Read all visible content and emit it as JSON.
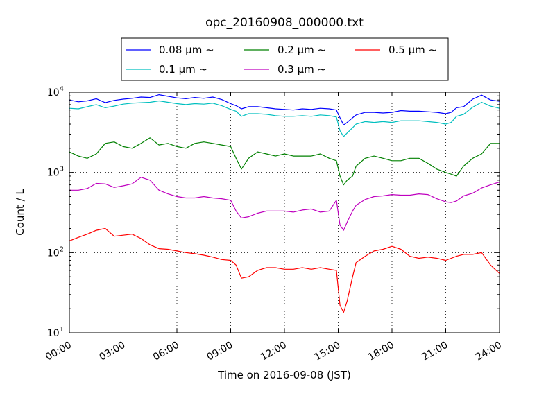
{
  "chart_data": {
    "type": "line",
    "title": "opc_20160908_000000.txt",
    "xlabel": "Time on 2016-09-08 (JST)",
    "ylabel": "Count / L",
    "x_unit": "hours",
    "xlim": [
      0,
      24
    ],
    "ylim": [
      10,
      10000
    ],
    "yscale": "log",
    "grid": true,
    "legend_position": "top-center",
    "x_ticks": [
      0,
      3,
      6,
      9,
      12,
      15,
      18,
      21,
      24
    ],
    "x_tick_labels": [
      "00:00",
      "03:00",
      "06:00",
      "09:00",
      "12:00",
      "15:00",
      "18:00",
      "21:00",
      "24:00"
    ],
    "y_ticks": [
      10,
      100,
      1000,
      10000
    ],
    "y_tick_labels": [
      {
        "base": "10",
        "exp": "1"
      },
      {
        "base": "10",
        "exp": "2"
      },
      {
        "base": "10",
        "exp": "3"
      },
      {
        "base": "10",
        "exp": "4"
      }
    ],
    "x": [
      0,
      0.5,
      1,
      1.5,
      2,
      2.5,
      3,
      3.5,
      4,
      4.5,
      5,
      5.5,
      6,
      6.5,
      7,
      7.5,
      8,
      8.5,
      9,
      9.3,
      9.6,
      10,
      10.5,
      11,
      11.5,
      12,
      12.5,
      13,
      13.5,
      14,
      14.5,
      14.9,
      15.1,
      15.3,
      15.5,
      15.8,
      16,
      16.5,
      17,
      17.5,
      18,
      18.5,
      19,
      19.5,
      20,
      20.5,
      21,
      21.3,
      21.6,
      22,
      22.5,
      23,
      23.5,
      24
    ],
    "series": [
      {
        "name": "0.08 μm ∼",
        "color": "#0000ff",
        "values": [
          8000,
          7600,
          7800,
          8300,
          7400,
          7900,
          8200,
          8400,
          8700,
          8600,
          9300,
          8900,
          8500,
          8300,
          8600,
          8400,
          8700,
          8100,
          7200,
          6800,
          6200,
          6600,
          6600,
          6400,
          6200,
          6100,
          6000,
          6200,
          6100,
          6300,
          6200,
          6000,
          4800,
          3900,
          4200,
          4800,
          5200,
          5600,
          5600,
          5500,
          5600,
          5900,
          5800,
          5800,
          5700,
          5600,
          5400,
          5600,
          6400,
          6600,
          8200,
          9200,
          8000,
          7700
        ]
      },
      {
        "name": "0.1 μm ∼",
        "color": "#00bfbf",
        "values": [
          6300,
          6200,
          6600,
          7000,
          6400,
          6700,
          7100,
          7300,
          7400,
          7500,
          7800,
          7500,
          7200,
          7000,
          7200,
          7100,
          7300,
          6800,
          6100,
          5800,
          5000,
          5400,
          5400,
          5300,
          5100,
          5000,
          5000,
          5100,
          5000,
          5200,
          5100,
          4900,
          3300,
          2800,
          3100,
          3600,
          4000,
          4300,
          4200,
          4300,
          4200,
          4400,
          4400,
          4400,
          4300,
          4200,
          4000,
          4200,
          5000,
          5300,
          6500,
          7500,
          6700,
          6300
        ]
      },
      {
        "name": "0.2 μm ∼",
        "color": "#008000",
        "values": [
          1800,
          1600,
          1500,
          1700,
          2300,
          2400,
          2100,
          2000,
          2300,
          2700,
          2200,
          2300,
          2100,
          2000,
          2300,
          2400,
          2300,
          2200,
          2100,
          1500,
          1100,
          1500,
          1800,
          1700,
          1600,
          1700,
          1600,
          1600,
          1600,
          1700,
          1500,
          1400,
          900,
          700,
          800,
          900,
          1200,
          1500,
          1600,
          1500,
          1400,
          1400,
          1500,
          1500,
          1300,
          1100,
          1000,
          950,
          900,
          1200,
          1500,
          1700,
          2300,
          2300
        ]
      },
      {
        "name": "0.3 μm ∼",
        "color": "#bf00bf",
        "values": [
          600,
          600,
          630,
          730,
          720,
          650,
          680,
          720,
          870,
          800,
          600,
          540,
          500,
          480,
          480,
          500,
          480,
          470,
          450,
          330,
          270,
          280,
          310,
          330,
          330,
          330,
          320,
          340,
          350,
          320,
          330,
          450,
          220,
          190,
          240,
          330,
          390,
          460,
          500,
          510,
          530,
          520,
          520,
          540,
          530,
          470,
          430,
          420,
          440,
          510,
          550,
          640,
          700,
          760
        ]
      },
      {
        "name": "0.5 μm ∼",
        "color": "#ff0000",
        "values": [
          140,
          155,
          170,
          190,
          200,
          160,
          165,
          170,
          150,
          125,
          112,
          110,
          105,
          100,
          97,
          93,
          88,
          82,
          80,
          70,
          48,
          50,
          60,
          65,
          65,
          62,
          62,
          65,
          62,
          65,
          62,
          60,
          22,
          18,
          25,
          50,
          75,
          90,
          105,
          110,
          120,
          110,
          90,
          85,
          88,
          85,
          80,
          85,
          90,
          95,
          95,
          100,
          70,
          55
        ]
      }
    ]
  }
}
